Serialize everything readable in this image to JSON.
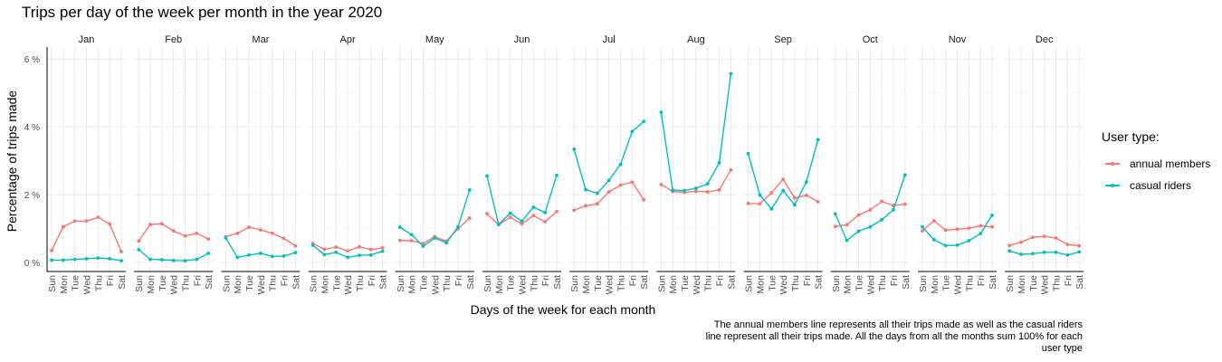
{
  "chart_data": {
    "type": "line",
    "title": "Trips per day of the week per month in the year 2020",
    "xlabel": "Days of the week for each month",
    "ylabel": "Percentage of trips made",
    "ylim": [
      0,
      6.3
    ],
    "y_ticks": [
      0,
      2,
      4,
      6
    ],
    "y_tick_labels": [
      "0 %",
      "2 %",
      "4 %",
      "6 %"
    ],
    "days": [
      "Sun",
      "Mon",
      "Tue",
      "Wed",
      "Thu",
      "Fri",
      "Sat"
    ],
    "grid": true,
    "legend_position": "right",
    "legend_title": "User type:",
    "facets": [
      {
        "month": "Jan",
        "annual_members": [
          0.35,
          1.05,
          1.22,
          1.22,
          1.33,
          1.13,
          0.32
        ],
        "casual_riders": [
          0.07,
          0.07,
          0.09,
          0.11,
          0.13,
          0.11,
          0.05
        ]
      },
      {
        "month": "Feb",
        "annual_members": [
          0.63,
          1.12,
          1.14,
          0.93,
          0.78,
          0.86,
          0.69
        ],
        "casual_riders": [
          0.38,
          0.09,
          0.08,
          0.06,
          0.05,
          0.09,
          0.27
        ]
      },
      {
        "month": "Mar",
        "annual_members": [
          0.76,
          0.86,
          1.04,
          0.96,
          0.86,
          0.71,
          0.49
        ],
        "casual_riders": [
          0.72,
          0.15,
          0.22,
          0.27,
          0.18,
          0.19,
          0.29
        ]
      },
      {
        "month": "Apr",
        "annual_members": [
          0.56,
          0.39,
          0.45,
          0.34,
          0.46,
          0.38,
          0.43
        ],
        "casual_riders": [
          0.51,
          0.23,
          0.3,
          0.15,
          0.21,
          0.22,
          0.33
        ]
      },
      {
        "month": "May",
        "annual_members": [
          0.65,
          0.64,
          0.56,
          0.76,
          0.63,
          0.99,
          1.31
        ],
        "casual_riders": [
          1.04,
          0.82,
          0.48,
          0.72,
          0.58,
          1.05,
          2.14
        ]
      },
      {
        "month": "Jun",
        "annual_members": [
          1.44,
          1.11,
          1.33,
          1.14,
          1.38,
          1.2,
          1.5
        ],
        "casual_riders": [
          2.55,
          1.12,
          1.45,
          1.22,
          1.63,
          1.47,
          2.57
        ]
      },
      {
        "month": "Jul",
        "annual_members": [
          1.54,
          1.67,
          1.73,
          2.08,
          2.28,
          2.37,
          1.85
        ],
        "casual_riders": [
          3.34,
          2.15,
          2.04,
          2.42,
          2.89,
          3.86,
          4.16
        ]
      },
      {
        "month": "Aug",
        "annual_members": [
          2.3,
          2.09,
          2.07,
          2.1,
          2.08,
          2.14,
          2.73
        ],
        "casual_riders": [
          4.43,
          2.13,
          2.12,
          2.19,
          2.32,
          2.94,
          5.57
        ]
      },
      {
        "month": "Sep",
        "annual_members": [
          1.74,
          1.73,
          2.05,
          2.45,
          1.9,
          1.98,
          1.79
        ],
        "casual_riders": [
          3.21,
          1.99,
          1.58,
          2.12,
          1.7,
          2.37,
          3.62
        ]
      },
      {
        "month": "Oct",
        "annual_members": [
          1.06,
          1.11,
          1.4,
          1.55,
          1.8,
          1.68,
          1.72
        ],
        "casual_riders": [
          1.43,
          0.65,
          0.92,
          1.05,
          1.26,
          1.55,
          2.58
        ]
      },
      {
        "month": "Nov",
        "annual_members": [
          0.93,
          1.23,
          0.95,
          0.98,
          1.01,
          1.08,
          1.05
        ],
        "casual_riders": [
          1.05,
          0.67,
          0.5,
          0.51,
          0.64,
          0.85,
          1.39
        ]
      },
      {
        "month": "Dec",
        "annual_members": [
          0.5,
          0.6,
          0.74,
          0.77,
          0.72,
          0.53,
          0.49
        ],
        "casual_riders": [
          0.34,
          0.24,
          0.26,
          0.3,
          0.3,
          0.22,
          0.31
        ]
      }
    ],
    "series": [
      {
        "key": "annual_members",
        "name": "annual members",
        "color": "#f8766d"
      },
      {
        "key": "casual_riders",
        "name": "casual riders",
        "color": "#00bfc4"
      }
    ],
    "caption": "The annual members line represents all their trips made as well as the casual riders line represent all their trips made. All the days from all the months sum 100% for each user type"
  }
}
